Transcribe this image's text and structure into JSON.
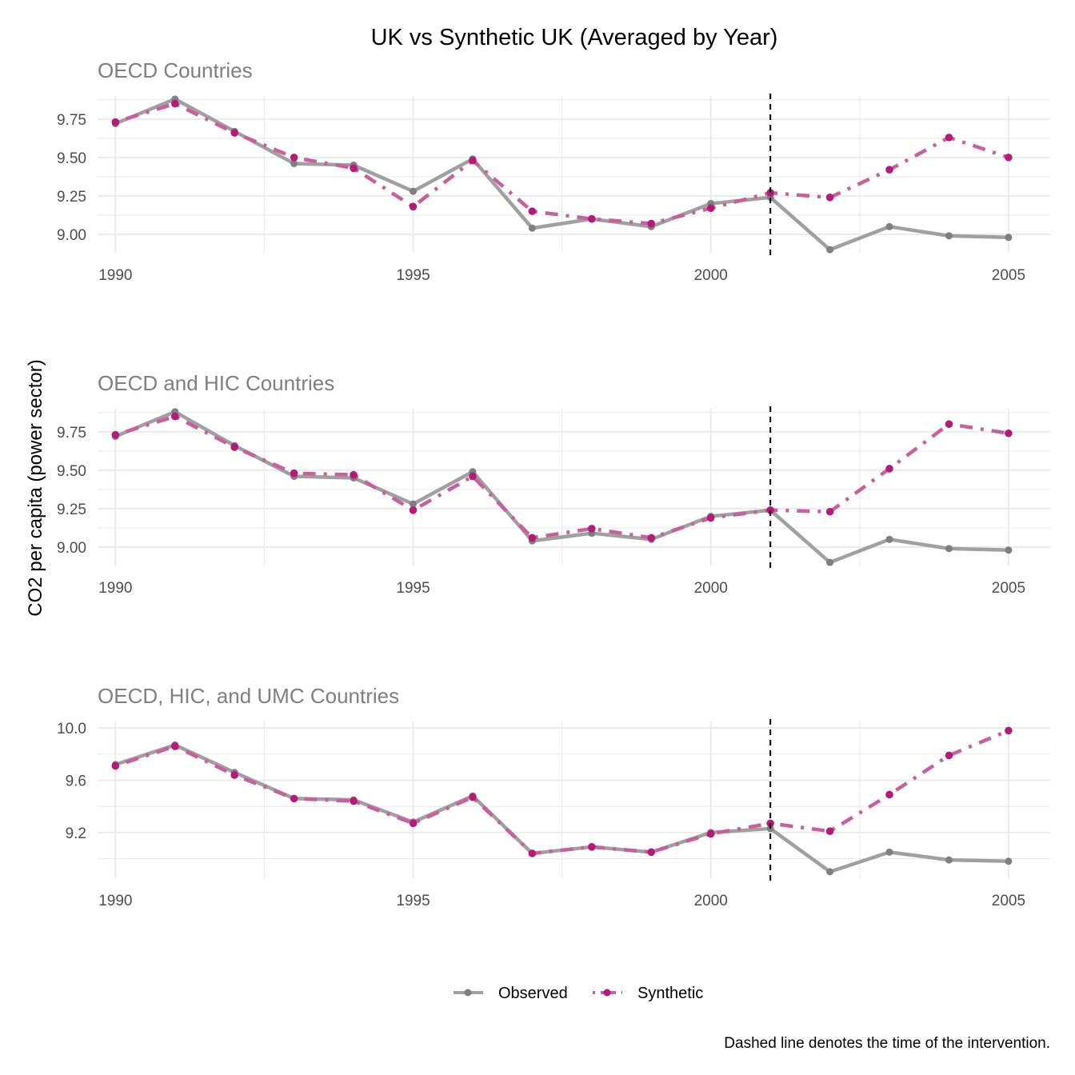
{
  "chart_data": [
    {
      "type": "line",
      "title": "UK vs Synthetic UK (Averaged by Year)",
      "subtitle": "OECD Countries",
      "xlabel": "",
      "ylabel": "CO2 per capita (power sector)",
      "x": [
        1990,
        1991,
        1992,
        1993,
        1994,
        1995,
        1996,
        1997,
        1998,
        1999,
        2000,
        2001,
        2002,
        2003,
        2004,
        2005
      ],
      "xlim": [
        1989.7,
        2005.7
      ],
      "ylim": [
        8.88,
        9.9
      ],
      "xticks": [
        1990,
        1995,
        2000,
        2005
      ],
      "xtick_labels": [
        "1990",
        "1995",
        "2000",
        "2005"
      ],
      "yticks": [
        9.0,
        9.25,
        9.5,
        9.75
      ],
      "ytick_labels": [
        "9.00",
        "9.25",
        "9.50",
        "9.75"
      ],
      "intervention_x": 2001,
      "grid": true,
      "series": [
        {
          "name": "Observed",
          "values": [
            9.72,
            9.88,
            9.67,
            9.46,
            9.45,
            9.28,
            9.49,
            9.04,
            9.1,
            9.05,
            9.2,
            9.24,
            8.9,
            9.05,
            8.99,
            8.98
          ]
        },
        {
          "name": "Synthetic",
          "values": [
            9.73,
            9.85,
            9.66,
            9.5,
            9.43,
            9.18,
            9.48,
            9.15,
            9.1,
            9.07,
            9.17,
            9.27,
            9.24,
            9.42,
            9.63,
            9.5
          ]
        }
      ]
    },
    {
      "type": "line",
      "subtitle": "OECD and HIC Countries",
      "x": [
        1990,
        1991,
        1992,
        1993,
        1994,
        1995,
        1996,
        1997,
        1998,
        1999,
        2000,
        2001,
        2002,
        2003,
        2004,
        2005
      ],
      "xlim": [
        1989.7,
        2005.7
      ],
      "ylim": [
        8.88,
        9.9
      ],
      "xticks": [
        1990,
        1995,
        2000,
        2005
      ],
      "xtick_labels": [
        "1990",
        "1995",
        "2000",
        "2005"
      ],
      "yticks": [
        9.0,
        9.25,
        9.5,
        9.75
      ],
      "ytick_labels": [
        "9.00",
        "9.25",
        "9.50",
        "9.75"
      ],
      "intervention_x": 2001,
      "grid": true,
      "series": [
        {
          "name": "Observed",
          "values": [
            9.72,
            9.88,
            9.66,
            9.46,
            9.45,
            9.28,
            9.49,
            9.04,
            9.09,
            9.05,
            9.2,
            9.24,
            8.9,
            9.05,
            8.99,
            8.98
          ]
        },
        {
          "name": "Synthetic",
          "values": [
            9.73,
            9.85,
            9.65,
            9.48,
            9.47,
            9.24,
            9.46,
            9.06,
            9.12,
            9.06,
            9.19,
            9.24,
            9.23,
            9.51,
            9.8,
            9.74
          ]
        }
      ]
    },
    {
      "type": "line",
      "subtitle": "OECD, HIC, and UMC Countries",
      "x": [
        1990,
        1991,
        1992,
        1993,
        1994,
        1995,
        1996,
        1997,
        1998,
        1999,
        2000,
        2001,
        2002,
        2003,
        2004,
        2005
      ],
      "xlim": [
        1989.7,
        2005.7
      ],
      "ylim": [
        8.85,
        10.05
      ],
      "xticks": [
        1990,
        1995,
        2000,
        2005
      ],
      "xtick_labels": [
        "1990",
        "1995",
        "2000",
        "2005"
      ],
      "yticks": [
        9.2,
        9.6,
        10.0
      ],
      "ytick_labels": [
        "9.2",
        "9.6",
        "10.0"
      ],
      "intervention_x": 2001,
      "grid": true,
      "series": [
        {
          "name": "Observed",
          "values": [
            9.72,
            9.87,
            9.66,
            9.46,
            9.45,
            9.28,
            9.48,
            9.04,
            9.09,
            9.05,
            9.2,
            9.23,
            8.9,
            9.05,
            8.99,
            8.98
          ]
        },
        {
          "name": "Synthetic",
          "values": [
            9.71,
            9.86,
            9.64,
            9.46,
            9.44,
            9.27,
            9.47,
            9.04,
            9.09,
            9.05,
            9.19,
            9.27,
            9.21,
            9.49,
            9.79,
            9.98
          ]
        }
      ]
    }
  ],
  "legend": {
    "position": "bottom",
    "items": [
      {
        "label": "Observed",
        "color": "#a0a0a0",
        "point_color": "#7f7f7f",
        "linestyle": "solid"
      },
      {
        "label": "Synthetic",
        "color": "#c9609e",
        "point_color": "#b5197a",
        "linestyle": "dotdash"
      }
    ]
  },
  "caption": "Dashed line denotes the time of the intervention.",
  "colors": {
    "observed_line": "#a0a0a0",
    "observed_point": "#7f7f7f",
    "synthetic_line": "#c9609e",
    "synthetic_point": "#b5197a",
    "intervention_line": "#000000",
    "grid": "#ebebeb"
  }
}
